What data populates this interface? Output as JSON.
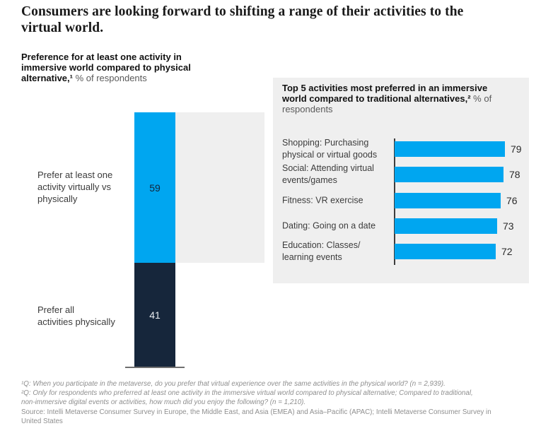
{
  "header": {
    "title": "Consumers are looking forward to shifting a range of their activities to the\nvirtual world."
  },
  "colors": {
    "accent_blue": "#00A6F0",
    "dark_navy": "#16263B",
    "panel_background": "#EFEFEF",
    "footnote_gray": "#8F8F8F"
  },
  "chart_data": [
    {
      "type": "bar",
      "orientation": "vertical",
      "stacked": true,
      "title": "Preference for at least one activity in immersive world compared to physical alternative, % of respondents",
      "title_bold": "Preference for at least one activity in immersive world compared to physical alternative,¹",
      "title_unit": " % of respondents",
      "categories": [
        "Prefer at least one activity virtually vs physically",
        "Prefer all activities physically"
      ],
      "display_categories": [
        "Prefer at least one\nactivity virtually vs\nphysically",
        "Prefer all\nactivities physically"
      ],
      "values": [
        59,
        41
      ],
      "colors": [
        "#00A6F0",
        "#16263B"
      ],
      "value_text_colors": [
        "#12263C",
        "#E9EDF1"
      ],
      "total": 100,
      "ylim": [
        0,
        100
      ],
      "grid": false,
      "legend": false
    },
    {
      "type": "bar",
      "orientation": "horizontal",
      "title": "Top 5 activities most preferred in an immersive world compared to traditional alternatives, % of respondents",
      "title_bold": "Top 5 activities most preferred in an immersive world compared to traditional alternatives,²",
      "title_unit": " % of respondents",
      "categories": [
        "Shopping: Purchasing physical or virtual goods",
        "Social: Attending virtual events/games",
        "Fitness: VR exercise",
        "Dating: Going on a date",
        "Education: Classes/learning events"
      ],
      "display_categories": [
        "Shopping: Purchasing\nphysical or virtual goods",
        "Social: Attending virtual\nevents/games",
        "Fitness: VR exercise",
        "Dating: Going on a date",
        "Education: Classes/\nlearning events"
      ],
      "values": [
        79,
        78,
        76,
        73,
        72
      ],
      "bar_color": "#00A6F0",
      "xlim": [
        0,
        100
      ],
      "grid": false,
      "legend": false,
      "value_labels_shown": true
    }
  ],
  "footnotes": {
    "fn1": "¹Q: When you participate in the metaverse, do you prefer that virtual experience over the same activities in the physical world? (n = 2,939).",
    "fn2": "²Q: Only for respondents who preferred at least one activity in the immersive virtual world compared to physical alternative; Compared to traditional,\nnon-immersive digital events or activities, how much did you enjoy the following? (n = 1,210).",
    "source": "Source: Intelli Metaverse Consumer Survey in Europe, the Middle East, and Asia (EMEA) and Asia–Pacific (APAC); Intelli Metaverse Consumer Survey in\nUnited States"
  }
}
